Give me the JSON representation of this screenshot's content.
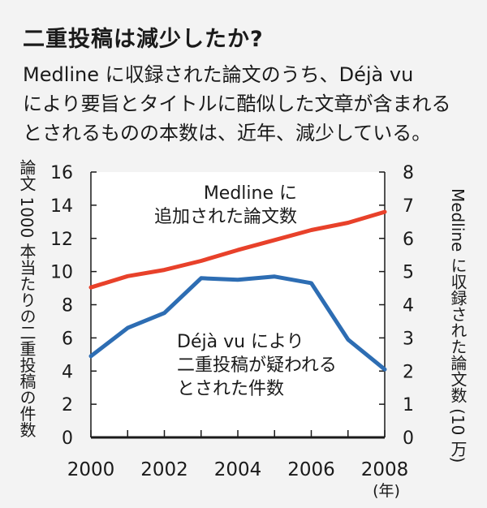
{
  "title": "二重投稿は減少したか?",
  "description": [
    "Medline に収録された論文のうち、Déjà vu",
    "により要旨とタイトルに酷似した文章が含まれる",
    "とされるものの本数は、近年、減少している。"
  ],
  "chart_data": {
    "type": "line",
    "x": [
      2000,
      2001,
      2002,
      2003,
      2004,
      2005,
      2006,
      2007,
      2008
    ],
    "xlim": [
      2000,
      2008
    ],
    "x_ticks": [
      "2000",
      "2002",
      "2004",
      "2006",
      "2008"
    ],
    "x_unit": "(年)",
    "ylabel_left": "論文 1000 本当たりの二重投稿の件数",
    "ylim_left": [
      0,
      16
    ],
    "y_ticks_left": [
      "0",
      "2",
      "4",
      "6",
      "8",
      "10",
      "12",
      "14",
      "16"
    ],
    "ylabel_right": "Medline に収録された論文数 (10 万)",
    "ylim_right": [
      0,
      8
    ],
    "y_ticks_right": [
      "0",
      "1",
      "2",
      "3",
      "4",
      "5",
      "6",
      "7",
      "8"
    ],
    "grid": false,
    "series": [
      {
        "name": "Medline に 追加された論文数",
        "axis": "right",
        "color": "#e8412a",
        "values": [
          4.52,
          4.86,
          5.05,
          5.32,
          5.65,
          5.95,
          6.25,
          6.47,
          6.8
        ]
      },
      {
        "name": "Déjà vu により 二重投稿が疑われる とされた件数",
        "axis": "left",
        "color": "#2d6db3",
        "values": [
          4.9,
          6.6,
          7.5,
          9.6,
          9.5,
          9.7,
          9.3,
          5.9,
          4.1
        ]
      }
    ]
  },
  "annotations": {
    "red_label": [
      "Medline に",
      "追加された論文数"
    ],
    "blue_label": [
      "Déjà vu により",
      "二重投稿が疑われる",
      "とされた件数"
    ]
  }
}
